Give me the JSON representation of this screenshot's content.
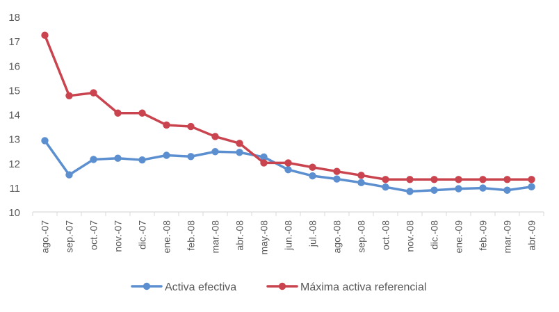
{
  "chart_data": {
    "type": "line",
    "categories": [
      "ago.-07",
      "sep.-07",
      "oct.-07",
      "nov.-07",
      "dic.-07",
      "ene.-08",
      "feb.-08",
      "mar.-08",
      "abr.-08",
      "may.-08",
      "jun.-08",
      "jul.-08",
      "ago.-08",
      "sep.-08",
      "oct.-08",
      "nov.-08",
      "dic.-08",
      "ene.-09",
      "feb.-09",
      "mar.-09",
      "abr.-09"
    ],
    "series": [
      {
        "name": "Activa efectiva",
        "color": "#5b8fd0",
        "values": [
          12.92,
          11.52,
          12.15,
          12.2,
          12.13,
          12.32,
          12.27,
          12.47,
          12.44,
          12.25,
          11.73,
          11.48,
          11.35,
          11.2,
          11.02,
          10.84,
          10.89,
          10.95,
          10.98,
          10.89,
          11.03
        ]
      },
      {
        "name": "Máxima activa referencial",
        "color": "#c9444e",
        "values": [
          17.24,
          14.76,
          14.88,
          14.05,
          14.05,
          13.56,
          13.5,
          13.09,
          12.81,
          12.01,
          12.01,
          11.83,
          11.66,
          11.5,
          11.33,
          11.33,
          11.33,
          11.33,
          11.33,
          11.33,
          11.33
        ]
      }
    ],
    "ylim": [
      10,
      18
    ],
    "yticks": [
      10,
      11,
      12,
      13,
      14,
      15,
      16,
      17,
      18
    ],
    "legend": "bottom",
    "grid": false
  }
}
